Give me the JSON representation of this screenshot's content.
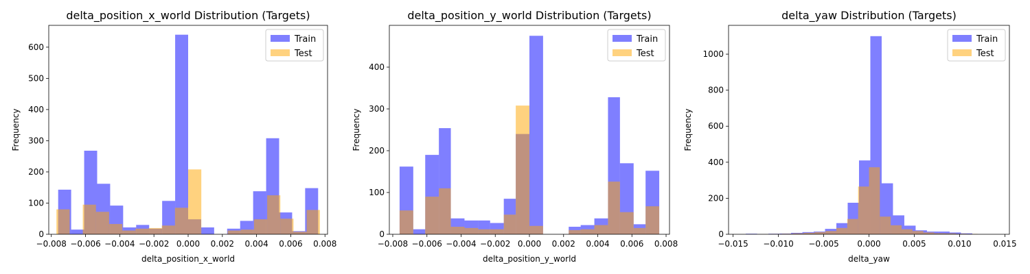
{
  "chart_data": [
    {
      "type": "histogram",
      "title": "delta_position_x_world Distribution (Targets)",
      "xlabel": "delta_position_x_world",
      "ylabel": "Frequency",
      "xlim": [
        -0.00815,
        0.00815
      ],
      "ylim": [
        0,
        670
      ],
      "xticks": [
        -0.008,
        -0.006,
        -0.004,
        -0.002,
        0.0,
        0.002,
        0.004,
        0.006,
        0.008
      ],
      "xtick_labels": [
        "−0.008",
        "−0.006",
        "−0.004",
        "−0.002",
        "0.000",
        "0.002",
        "0.004",
        "0.006",
        "0.008"
      ],
      "yticks": [
        0,
        100,
        200,
        300,
        400,
        500,
        600
      ],
      "ytick_labels": [
        "0",
        "100",
        "200",
        "300",
        "400",
        "500",
        "600"
      ],
      "legend": "top-right",
      "series": [
        {
          "name": "Train",
          "color": "#0000ff",
          "opacity": 0.5,
          "bin_edges": [
            -0.0076,
            -0.00684,
            -0.00608,
            -0.00532,
            -0.00456,
            -0.0038,
            -0.00304,
            -0.00228,
            -0.00152,
            -0.00076,
            0.0,
            0.00076,
            0.00152,
            0.00228,
            0.00304,
            0.0038,
            0.00456,
            0.00532,
            0.00608,
            0.00684,
            0.0076
          ],
          "counts": [
            143,
            15,
            268,
            162,
            92,
            22,
            30,
            18,
            107,
            640,
            48,
            22,
            0,
            18,
            43,
            138,
            308,
            70,
            10,
            148
          ]
        },
        {
          "name": "Test",
          "color": "#ffa500",
          "opacity": 0.5,
          "bin_edges": [
            -0.0077,
            -0.00693,
            -0.00616,
            -0.00539,
            -0.00462,
            -0.00385,
            -0.00308,
            -0.00231,
            -0.00154,
            -0.00077,
            0.0,
            0.00077,
            0.00154,
            0.00231,
            0.00308,
            0.00385,
            0.00462,
            0.00539,
            0.00616,
            0.00693,
            0.0077
          ],
          "counts": [
            80,
            0,
            95,
            72,
            33,
            12,
            18,
            20,
            28,
            85,
            208,
            0,
            0,
            12,
            15,
            48,
            125,
            50,
            8,
            78
          ]
        }
      ]
    },
    {
      "type": "histogram",
      "title": "delta_position_y_world Distribution (Targets)",
      "xlabel": "delta_position_y_world",
      "ylabel": "Frequency",
      "xlim": [
        -0.0082,
        0.0082
      ],
      "ylim": [
        0,
        500
      ],
      "xticks": [
        -0.008,
        -0.006,
        -0.004,
        -0.002,
        0.0,
        0.002,
        0.004,
        0.006,
        0.008
      ],
      "xtick_labels": [
        "−0.008",
        "−0.006",
        "−0.004",
        "−0.002",
        "0.000",
        "0.002",
        "0.004",
        "0.006",
        "0.008"
      ],
      "yticks": [
        0,
        100,
        200,
        300,
        400
      ],
      "ytick_labels": [
        "0",
        "100",
        "200",
        "300",
        "400"
      ],
      "legend": "top-right",
      "series": [
        {
          "name": "Train",
          "color": "#0000ff",
          "opacity": 0.5,
          "bin_edges": [
            -0.0076,
            -0.0068,
            -0.0061,
            -0.0053,
            -0.0046,
            -0.0038,
            -0.003,
            -0.0023,
            -0.0015,
            -0.0008,
            0.0,
            0.0008,
            0.0015,
            0.0023,
            0.003,
            0.0038,
            0.0046,
            0.0053,
            0.0061,
            0.0068,
            0.0076
          ],
          "counts": [
            162,
            12,
            190,
            254,
            38,
            33,
            33,
            27,
            85,
            240,
            475,
            0,
            0,
            18,
            22,
            38,
            328,
            170,
            24,
            152
          ]
        },
        {
          "name": "Test",
          "color": "#ffa500",
          "opacity": 0.5,
          "bin_edges": [
            -0.0076,
            -0.0068,
            -0.0061,
            -0.0053,
            -0.0046,
            -0.0038,
            -0.003,
            -0.0023,
            -0.0015,
            -0.0008,
            0.0,
            0.0008,
            0.0015,
            0.0023,
            0.003,
            0.0038,
            0.0046,
            0.0053,
            0.0061,
            0.0068,
            0.0076
          ],
          "counts": [
            57,
            0,
            90,
            110,
            18,
            15,
            12,
            12,
            47,
            308,
            20,
            0,
            0,
            10,
            12,
            22,
            126,
            53,
            15,
            67
          ]
        }
      ]
    },
    {
      "type": "histogram",
      "title": "delta_yaw Distribution (Targets)",
      "xlabel": "delta_yaw",
      "ylabel": "Frequency",
      "xlim": [
        -0.0155,
        0.0155
      ],
      "ylim": [
        0,
        1160
      ],
      "xticks": [
        -0.015,
        -0.01,
        -0.005,
        0.0,
        0.005,
        0.01,
        0.015
      ],
      "xtick_labels": [
        "−0.015",
        "−0.010",
        "−0.005",
        "0.000",
        "0.005",
        "0.010",
        "0.015"
      ],
      "yticks": [
        0,
        200,
        400,
        600,
        800,
        1000
      ],
      "ytick_labels": [
        "0",
        "200",
        "400",
        "600",
        "800",
        "1000"
      ],
      "legend": "top-right",
      "series": [
        {
          "name": "Train",
          "color": "#0000ff",
          "opacity": 0.5,
          "bin_edges": [
            -0.0136,
            -0.01235,
            -0.0111,
            -0.00985,
            -0.0086,
            -0.00735,
            -0.0061,
            -0.00485,
            -0.0036,
            -0.00235,
            -0.0011,
            0.00015,
            0.0014,
            0.00265,
            0.0039,
            0.00515,
            0.0064,
            0.00765,
            0.0089,
            0.01015,
            0.0114
          ],
          "counts": [
            3,
            1,
            3,
            4,
            8,
            12,
            15,
            30,
            62,
            175,
            410,
            1100,
            283,
            105,
            48,
            22,
            15,
            15,
            10,
            5
          ]
        },
        {
          "name": "Test",
          "color": "#ffa500",
          "opacity": 0.5,
          "bin_edges": [
            -0.012,
            -0.0108,
            -0.0096,
            -0.0084,
            -0.0072,
            -0.006,
            -0.0048,
            -0.0036,
            -0.0024,
            -0.0012,
            0.0,
            0.0012,
            0.0024,
            0.0036,
            0.0048,
            0.006,
            0.0072,
            0.0084,
            0.0096,
            0.0108,
            0.012
          ],
          "counts": [
            1,
            2,
            3,
            5,
            8,
            12,
            18,
            35,
            85,
            265,
            372,
            98,
            50,
            28,
            18,
            10,
            6,
            5,
            3,
            2
          ]
        }
      ]
    }
  ]
}
